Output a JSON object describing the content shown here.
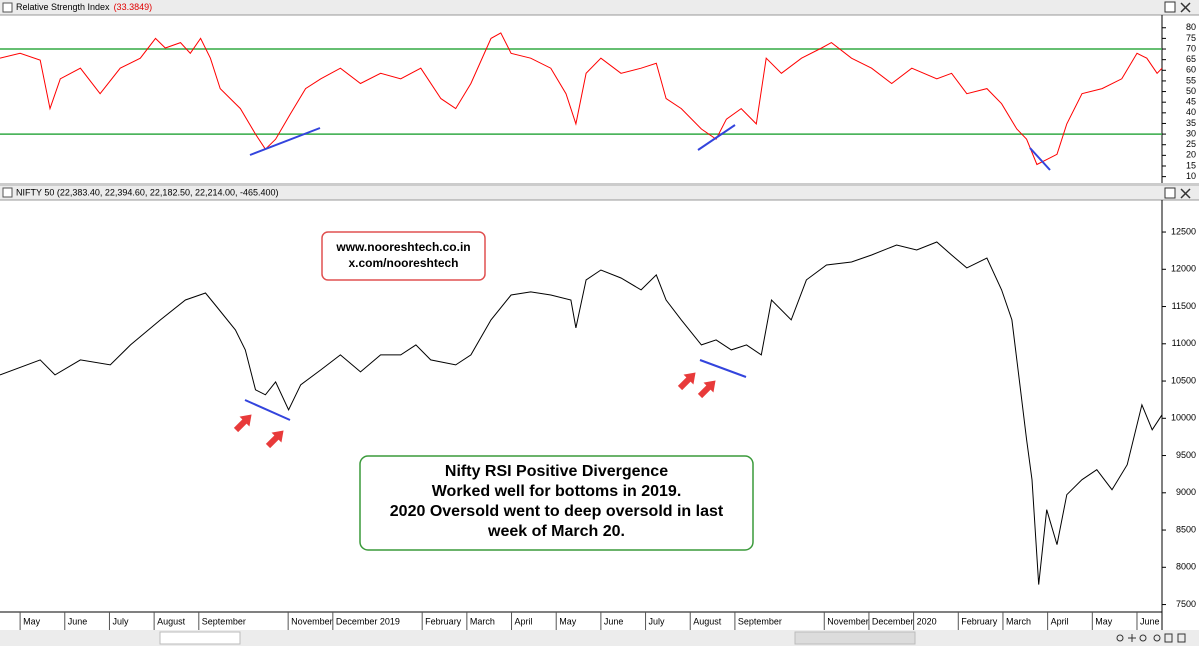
{
  "chart_data": [
    {
      "type": "line",
      "title": "Relative Strength Index",
      "value_label": "(33.3849)",
      "x": [
        -0.45,
        0.0,
        0.45,
        0.67,
        0.9,
        1.35,
        1.79,
        2.24,
        2.69,
        3.03,
        3.25,
        3.59,
        3.81,
        4.04,
        4.26,
        4.48,
        4.93,
        5.27,
        5.49,
        5.72,
        6.05,
        6.39,
        6.73,
        7.17,
        7.62,
        8.07,
        8.52,
        8.97,
        9.42,
        9.75,
        10.09,
        10.54,
        10.76,
        10.99,
        11.43,
        11.88,
        12.22,
        12.44,
        12.67,
        13.0,
        13.45,
        13.9,
        14.24,
        14.46,
        14.8,
        15.25,
        15.58,
        15.81,
        16.14,
        16.48,
        16.7,
        17.04,
        17.49,
        17.94,
        18.16,
        18.61,
        19.06,
        19.51,
        19.96,
        20.52,
        20.85,
        21.19,
        21.64,
        21.97,
        22.31,
        22.53,
        22.76,
        22.98,
        23.21,
        23.43,
        23.77,
        24.22,
        24.66,
        25.0,
        25.22,
        25.45,
        25.56
      ],
      "series": [
        {
          "color": "#ff0000",
          "values": [
            65.7,
            68,
            64.8,
            42,
            56,
            61,
            49,
            61,
            65.7,
            75,
            70.5,
            73,
            68,
            75,
            65.7,
            51.4,
            42,
            30,
            22.9,
            27.6,
            39.5,
            51.4,
            56,
            61,
            53.8,
            58.6,
            56,
            61,
            46.7,
            42,
            53.8,
            75,
            77.6,
            68,
            65.7,
            61,
            49,
            34.8,
            58.6,
            65.7,
            58.6,
            61,
            63.3,
            46.7,
            42,
            32.4,
            27.6,
            37,
            42,
            34.8,
            65.7,
            58.6,
            65.7,
            70.5,
            73,
            65.7,
            61,
            53.8,
            61,
            56,
            58.6,
            49,
            51.4,
            44.3,
            32.4,
            27.6,
            15.7,
            18,
            20.5,
            34.8,
            49,
            51.4,
            56,
            68,
            65.7,
            58.6,
            61
          ]
        }
      ],
      "xlim": [
        -0.45,
        25.56
      ],
      "ylim": [
        7,
        86
      ],
      "yticks": [
        10,
        15,
        20,
        25,
        30,
        35,
        40,
        45,
        50,
        55,
        60,
        65,
        70,
        75,
        80
      ],
      "reference_lines": [
        70,
        30
      ],
      "reference_color": "#33aa44"
    },
    {
      "type": "line",
      "title": "NIFTY 50 (22,383.40, 22,394.60, 22,182.50, 22,214.00, -465.400)",
      "x": [
        -0.45,
        0.45,
        0.78,
        1.35,
        2.02,
        2.47,
        3.14,
        3.7,
        4.15,
        4.37,
        4.82,
        5.04,
        5.27,
        5.49,
        5.72,
        6.01,
        6.28,
        6.73,
        7.17,
        7.62,
        8.07,
        8.52,
        8.86,
        9.19,
        9.75,
        10.09,
        10.54,
        10.99,
        11.43,
        11.88,
        12.33,
        12.44,
        12.67,
        13.0,
        13.45,
        13.9,
        14.24,
        14.46,
        14.8,
        15.25,
        15.58,
        15.92,
        16.26,
        16.59,
        16.82,
        17.26,
        17.6,
        18.05,
        18.61,
        19.06,
        19.62,
        20.07,
        20.52,
        20.85,
        21.19,
        21.64,
        21.97,
        22.2,
        22.38,
        22.53,
        22.65,
        22.8,
        22.98,
        23.21,
        23.43,
        23.77,
        24.1,
        24.44,
        24.78,
        25.11,
        25.34,
        25.56
      ],
      "series": [
        {
          "color": "#000000",
          "values": [
            10583,
            10784,
            10583,
            10784,
            10717,
            10985,
            11320,
            11588,
            11682,
            11521,
            11186,
            10918,
            10382,
            10315,
            10489,
            10114,
            10449,
            10650,
            10851,
            10623,
            10851,
            10851,
            10985,
            10784,
            10717,
            10851,
            11320,
            11655,
            11696,
            11655,
            11588,
            11213,
            11857,
            11991,
            11883,
            11723,
            11924,
            11588,
            11320,
            10985,
            11052,
            10918,
            10985,
            10851,
            11588,
            11320,
            11857,
            12058,
            12098,
            12192,
            12326,
            12259,
            12366,
            12192,
            12018,
            12152,
            11723,
            11320,
            10449,
            9712,
            9176,
            7768,
            8773,
            8304,
            8975,
            9176,
            9310,
            9042,
            9377,
            10181,
            9846,
            10047
          ]
        }
      ],
      "xlim": [
        -0.45,
        25.56
      ],
      "ylim": [
        7400,
        12930
      ],
      "yticks": [
        7500,
        8000,
        8500,
        9000,
        9500,
        10000,
        10500,
        11000,
        11500,
        12000,
        12500
      ],
      "xticks": [
        {
          "value": 0,
          "label": "May"
        },
        {
          "value": 1,
          "label": "June"
        },
        {
          "value": 2,
          "label": "July"
        },
        {
          "value": 3,
          "label": "August"
        },
        {
          "value": 4,
          "label": "September"
        },
        {
          "value": 6,
          "label": "November"
        },
        {
          "value": 7,
          "label": "December 2019"
        },
        {
          "value": 9,
          "label": "February"
        },
        {
          "value": 10,
          "label": "March"
        },
        {
          "value": 11,
          "label": "April"
        },
        {
          "value": 12,
          "label": "May"
        },
        {
          "value": 13,
          "label": "June"
        },
        {
          "value": 14,
          "label": "July"
        },
        {
          "value": 15,
          "label": "August"
        },
        {
          "value": 16,
          "label": "September"
        },
        {
          "value": 18,
          "label": "November"
        },
        {
          "value": 19,
          "label": "December"
        },
        {
          "value": 20,
          "label": "2020"
        },
        {
          "value": 21,
          "label": "February"
        },
        {
          "value": 22,
          "label": "March"
        },
        {
          "value": 23,
          "label": "April"
        },
        {
          "value": 24,
          "label": "May"
        },
        {
          "value": 25,
          "label": "June"
        }
      ],
      "annotations": {
        "watermark": [
          "www.nooreshtech.co.in",
          "x.com/nooreshtech"
        ],
        "note": [
          "Nifty RSI Positive Divergence",
          "Worked well for bottoms in 2019.",
          "2020 Oversold went to deep oversold in last",
          "week of March 20."
        ]
      }
    }
  ]
}
